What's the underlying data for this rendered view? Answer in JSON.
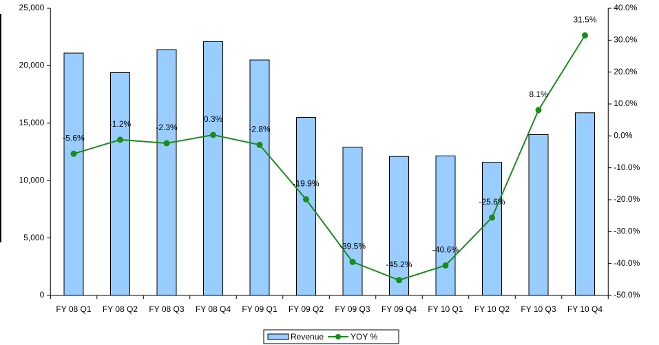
{
  "chart_data": {
    "type": "bar",
    "categories": [
      "FY 08 Q1",
      "FY 08 Q2",
      "FY 08 Q3",
      "FY 08 Q4",
      "FY 09 Q1",
      "FY 09 Q2",
      "FY 09 Q3",
      "FY 09 Q4",
      "FY 10 Q1",
      "FY 10 Q2",
      "FY 10 Q3",
      "FY 10 Q4"
    ],
    "series": [
      {
        "name": "Revenue",
        "type": "bar",
        "color": "#99ccff",
        "values": [
          21100,
          19400,
          21400,
          22100,
          20500,
          15500,
          12900,
          12100,
          12150,
          11600,
          14000,
          15900
        ]
      },
      {
        "name": "YOY %",
        "type": "line",
        "axis": "y2",
        "color": "#1a8c1a",
        "values": [
          -5.6,
          -1.2,
          -2.3,
          0.3,
          -2.8,
          -19.9,
          -39.5,
          -45.2,
          -40.6,
          -25.6,
          8.1,
          31.5
        ],
        "value_labels": [
          "-5.6%",
          "-1.2%",
          "-2.3%",
          "0.3%",
          "-2.8%",
          "-19.9%",
          "-39.5%",
          "-45.2%",
          "-40.6%",
          "-25.6%",
          "8.1%",
          "31.5%"
        ]
      }
    ],
    "ylim": [
      0,
      25000
    ],
    "yticks": [
      0,
      {
        "value": 5000,
        "label": "5,000"
      },
      {
        "value": 10000,
        "label": "10,000"
      },
      {
        "value": 15000,
        "label": "15,000"
      },
      {
        "value": 20000,
        "label": "20,000"
      },
      {
        "value": 25000,
        "label": "25,000"
      }
    ],
    "y2lim": [
      -50,
      40
    ],
    "y2ticks": [
      {
        "value": -50,
        "label": "-50.0%"
      },
      {
        "value": -40,
        "label": "-40.0%"
      },
      {
        "value": -30,
        "label": "-30.0%"
      },
      {
        "value": -20,
        "label": "-20.0%"
      },
      {
        "value": -10,
        "label": "-10.0%"
      },
      {
        "value": 0,
        "label": "0.0%"
      },
      {
        "value": 10,
        "label": "10.0%"
      },
      {
        "value": 20,
        "label": "20.0%"
      },
      {
        "value": 30,
        "label": "30.0%"
      },
      {
        "value": 40,
        "label": "40.0%"
      }
    ],
    "legend": "bottom"
  }
}
